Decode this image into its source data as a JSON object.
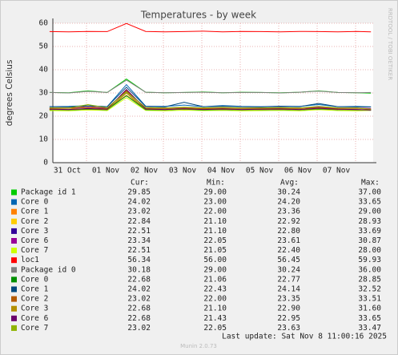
{
  "chart_data": {
    "type": "line",
    "title": "Temperatures - by week",
    "y_label": "degrees Celsius",
    "side_label": "RRDTOOL / TOBI OETIKER",
    "footer": "Munin 2.0.73",
    "last_update": "Last update: Sat Nov  8 11:00:16 2025",
    "stat_headers": [
      "Cur:",
      "Min:",
      "Avg:",
      "Max:"
    ],
    "xlim": [
      -0.375,
      7.958
    ],
    "xticks": [
      {
        "value": 0,
        "label": "31 Oct"
      },
      {
        "value": 1,
        "label": "01 Nov"
      },
      {
        "value": 2,
        "label": "02 Nov"
      },
      {
        "value": 3,
        "label": "03 Nov"
      },
      {
        "value": 4,
        "label": "04 Nov"
      },
      {
        "value": 5,
        "label": "05 Nov"
      },
      {
        "value": 6,
        "label": "06 Nov"
      },
      {
        "value": 7,
        "label": "07 Nov"
      }
    ],
    "ylim": [
      0,
      60
    ],
    "yticks": [
      0,
      10,
      20,
      30,
      40,
      50,
      60
    ],
    "grid": true,
    "x": [
      -0.46,
      0.04,
      0.54,
      1.04,
      1.54,
      2.04,
      2.54,
      3.04,
      3.54,
      4.04,
      4.54,
      5.04,
      5.54,
      6.04,
      6.54,
      7.04,
      7.54,
      7.9
    ],
    "series": [
      {
        "name": "Package id 1",
        "color": "#00cc00",
        "stats": [
          "29.85",
          "29.00",
          "30.24",
          "37.00"
        ],
        "values": [
          30.2,
          30.1,
          30.9,
          30.2,
          36,
          30.3,
          30.1,
          30.2,
          30.4,
          30.1,
          30.3,
          30.2,
          30.1,
          30.3,
          30.9,
          30.2,
          30.1,
          29.9
        ]
      },
      {
        "name": "Core 0",
        "color": "#0066b3",
        "stats": [
          "24.02",
          "23.00",
          "24.20",
          "33.65"
        ],
        "values": [
          24.1,
          24.2,
          24.5,
          24.1,
          33.6,
          24.3,
          24.2,
          24.8,
          24.1,
          24.6,
          24.2,
          24.1,
          24.3,
          24.2,
          25,
          24.1,
          24.2,
          24
        ]
      },
      {
        "name": "Core 1",
        "color": "#ff8000",
        "stats": [
          "23.02",
          "22.00",
          "23.36",
          "29.00"
        ],
        "values": [
          23.3,
          23.4,
          23.8,
          23.3,
          29,
          23.4,
          23.3,
          23.5,
          23.2,
          23.5,
          23.4,
          23.3,
          23.4,
          23.3,
          23.8,
          23.3,
          23.4,
          23
        ]
      },
      {
        "name": "Core 2",
        "color": "#ffcc00",
        "stats": [
          "22.84",
          "21.10",
          "22.92",
          "28.93"
        ],
        "values": [
          22.9,
          22.8,
          24.5,
          22.9,
          28.9,
          23,
          22.8,
          23.1,
          22.9,
          23,
          22.8,
          22.9,
          23,
          22.8,
          23.3,
          22.9,
          22.8,
          22.8
        ]
      },
      {
        "name": "Core 3",
        "color": "#330099",
        "stats": [
          "22.51",
          "21.10",
          "22.80",
          "33.69"
        ],
        "values": [
          22.8,
          22.7,
          23,
          22.8,
          30,
          22.9,
          22.7,
          23.1,
          22.8,
          22.9,
          22.7,
          22.8,
          22.9,
          22.7,
          23.2,
          22.8,
          22.7,
          22.5
        ]
      },
      {
        "name": "Core 6",
        "color": "#990099",
        "stats": [
          "23.34",
          "22.05",
          "23.61",
          "30.87"
        ],
        "values": [
          23.6,
          23.5,
          23.9,
          23.6,
          30.8,
          23.7,
          23.5,
          23.8,
          23.6,
          23.7,
          23.5,
          23.6,
          23.7,
          23.5,
          24,
          23.6,
          23.5,
          23.3
        ]
      },
      {
        "name": "Core 7",
        "color": "#ccff00",
        "stats": [
          "22.51",
          "21.05",
          "22.40",
          "28.00"
        ],
        "values": [
          22.4,
          22.3,
          22.7,
          22.4,
          28,
          22.5,
          22.3,
          22.6,
          22.4,
          22.5,
          22.3,
          22.4,
          22.5,
          22.3,
          22.8,
          22.4,
          22.3,
          22.5
        ]
      },
      {
        "name": "loc1",
        "color": "#ff0000",
        "stats": [
          "56.34",
          "56.00",
          "56.45",
          "59.93"
        ],
        "values": [
          56.4,
          56.3,
          56.5,
          56.4,
          59.9,
          56.5,
          56.3,
          56.4,
          56.6,
          56.3,
          56.5,
          56.4,
          56.3,
          56.5,
          56.4,
          56.3,
          56.5,
          56.3
        ]
      },
      {
        "name": "Package id 0",
        "color": "#808080",
        "stats": [
          "30.18",
          "29.00",
          "30.24",
          "36.00"
        ],
        "values": [
          30.2,
          30,
          30.7,
          30.2,
          35.5,
          30.3,
          30.1,
          30.2,
          30.3,
          30.1,
          30.2,
          30.2,
          30,
          30.3,
          30.8,
          30.2,
          30.1,
          30.2
        ]
      },
      {
        "name": "Core 0",
        "color": "#008f00",
        "stats": [
          "22.68",
          "21.06",
          "22.77",
          "28.85"
        ],
        "values": [
          22.8,
          22.7,
          23,
          22.8,
          28.8,
          22.8,
          22.7,
          23,
          22.7,
          22.9,
          22.7,
          22.8,
          22.9,
          22.7,
          23.1,
          22.8,
          22.7,
          22.7
        ]
      },
      {
        "name": "Core 1",
        "color": "#00487d",
        "stats": [
          "24.02",
          "22.43",
          "24.14",
          "32.52"
        ],
        "values": [
          24.1,
          24,
          24.4,
          24.1,
          32.5,
          24.2,
          24,
          26,
          24.1,
          24.3,
          24.1,
          24,
          24.2,
          24.1,
          25.5,
          24.1,
          24,
          24
        ]
      },
      {
        "name": "Core 2",
        "color": "#b35a00",
        "stats": [
          "23.02",
          "22.00",
          "23.35",
          "33.51"
        ],
        "values": [
          23.3,
          23.4,
          23.7,
          23.3,
          31,
          23.4,
          23.3,
          23.5,
          23.3,
          23.4,
          23.3,
          23.3,
          23.4,
          23.3,
          23.7,
          23.3,
          23.4,
          23
        ]
      },
      {
        "name": "Core 3",
        "color": "#b38f00",
        "stats": [
          "22.68",
          "21.10",
          "22.90",
          "31.60"
        ],
        "values": [
          22.9,
          22.8,
          23.2,
          22.9,
          30,
          23,
          22.8,
          23.1,
          22.9,
          23,
          22.8,
          22.9,
          23,
          22.8,
          23.3,
          22.9,
          22.8,
          22.7
        ]
      },
      {
        "name": "Core 6",
        "color": "#6b006b",
        "stats": [
          "22.68",
          "21.43",
          "22.95",
          "33.65"
        ],
        "values": [
          23,
          22.9,
          23.3,
          23,
          31.5,
          23.1,
          22.9,
          23.2,
          22.9,
          23.1,
          22.9,
          23,
          23.1,
          22.9,
          23.4,
          23,
          22.9,
          22.7
        ]
      },
      {
        "name": "Core 7",
        "color": "#8fb300",
        "stats": [
          "23.02",
          "22.05",
          "23.63",
          "33.47"
        ],
        "values": [
          23.6,
          23.5,
          25,
          23.6,
          30.5,
          23.7,
          23.5,
          23.9,
          23.6,
          23.8,
          23.5,
          23.6,
          23.7,
          23.5,
          24.2,
          23.6,
          23.5,
          23
        ]
      }
    ]
  }
}
